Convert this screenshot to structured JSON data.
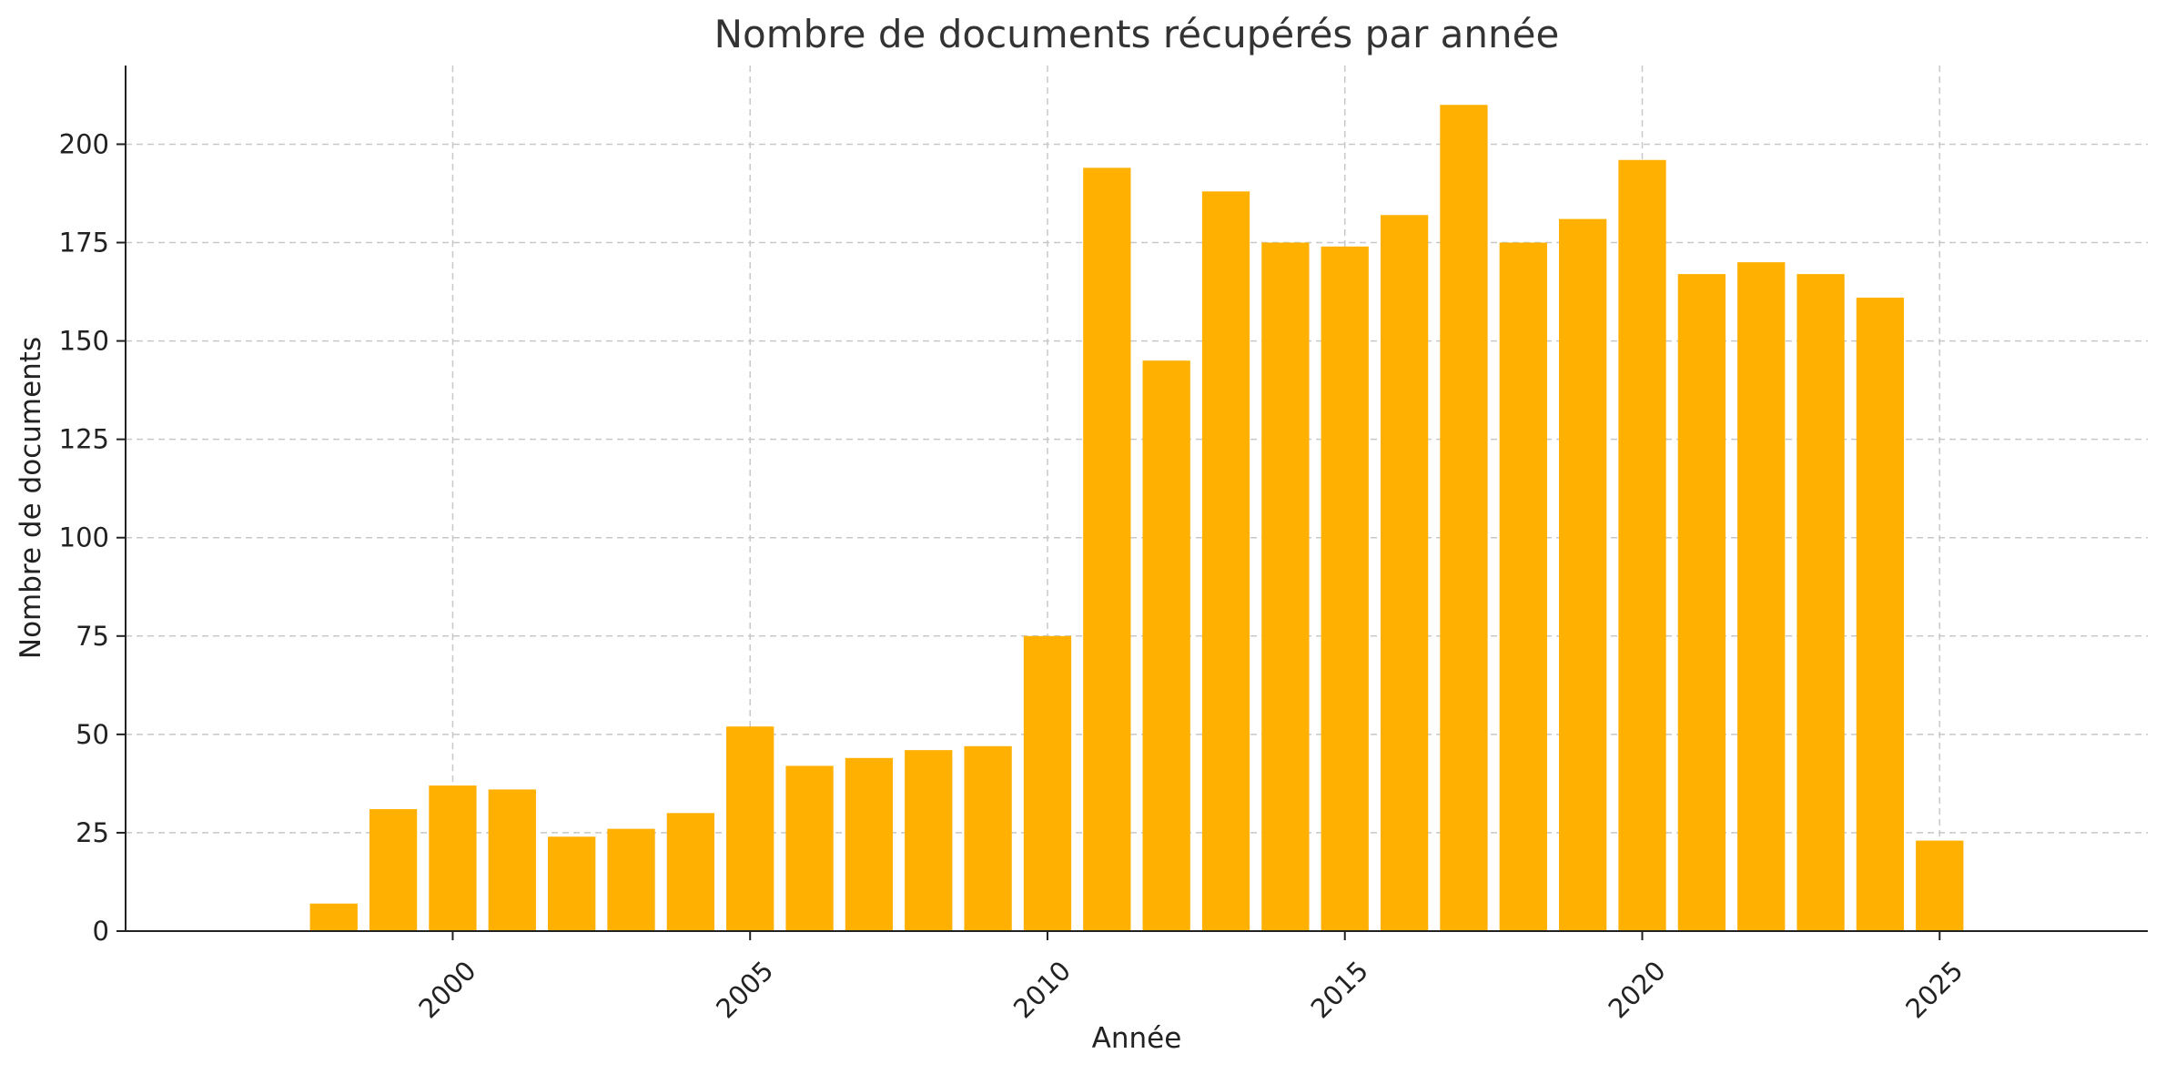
{
  "chart_data": {
    "type": "bar",
    "title": "Nombre de documents récupérés par année",
    "xlabel": "Année",
    "ylabel": "Nombre de documents",
    "x": [
      1998,
      1999,
      2000,
      2001,
      2002,
      2003,
      2004,
      2005,
      2006,
      2007,
      2008,
      2009,
      2010,
      2011,
      2012,
      2013,
      2014,
      2015,
      2016,
      2017,
      2018,
      2019,
      2020,
      2021,
      2022,
      2023,
      2024,
      2025
    ],
    "values": [
      7,
      31,
      37,
      36,
      24,
      26,
      30,
      52,
      42,
      44,
      46,
      47,
      75,
      194,
      145,
      188,
      175,
      174,
      182,
      210,
      175,
      181,
      196,
      167,
      170,
      167,
      161,
      23
    ],
    "xlim": [
      1994.5,
      2028.5
    ],
    "ylim": [
      0,
      220
    ],
    "xticks": [
      "2000",
      "2005",
      "2010",
      "2015",
      "2020",
      "2025"
    ],
    "yticks": [
      "0",
      "25",
      "50",
      "75",
      "100",
      "125",
      "150",
      "175",
      "200"
    ],
    "grid": true,
    "bar_color": "#FFB000",
    "xtick_rotation": "45°"
  }
}
